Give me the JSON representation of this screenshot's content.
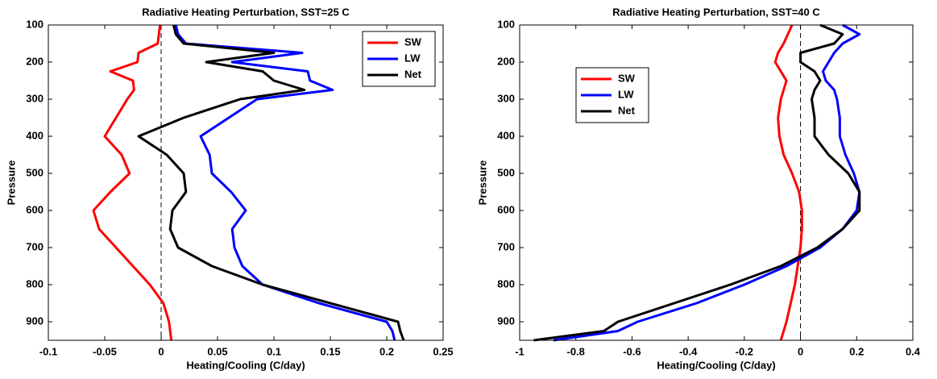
{
  "chart_data": [
    {
      "type": "line",
      "title": "Radiative Heating Perturbation, SST=25 C",
      "x_label": "Heating/Cooling (C/day)",
      "y_label": "Pressure",
      "y": [
        100,
        125,
        150,
        175,
        200,
        225,
        250,
        275,
        300,
        350,
        400,
        450,
        500,
        550,
        600,
        650,
        700,
        750,
        800,
        850,
        900,
        925,
        950
      ],
      "series": [
        {
          "name": "SW",
          "color": "#ff0000",
          "values": [
            -0.001,
            -0.002,
            -0.003,
            -0.02,
            -0.021,
            -0.045,
            -0.025,
            -0.024,
            -0.03,
            -0.04,
            -0.05,
            -0.035,
            -0.028,
            -0.045,
            -0.06,
            -0.055,
            -0.04,
            -0.025,
            -0.01,
            0.002,
            0.007,
            0.008,
            0.009
          ]
        },
        {
          "name": "LW",
          "color": "#0000ff",
          "values": [
            0.013,
            0.015,
            0.022,
            0.125,
            0.063,
            0.13,
            0.132,
            0.152,
            0.085,
            0.06,
            0.035,
            0.043,
            0.045,
            0.062,
            0.075,
            0.063,
            0.065,
            0.072,
            0.09,
            0.14,
            0.2,
            0.205,
            0.207
          ]
        },
        {
          "name": "Net",
          "color": "#000000",
          "values": [
            0.011,
            0.013,
            0.02,
            0.1,
            0.04,
            0.09,
            0.1,
            0.127,
            0.07,
            0.02,
            -0.02,
            0.005,
            0.02,
            0.022,
            0.01,
            0.008,
            0.015,
            0.045,
            0.09,
            0.15,
            0.21,
            0.212,
            0.215
          ]
        }
      ],
      "xlim": [
        -0.1,
        0.25
      ],
      "xticks": [
        -0.1,
        -0.05,
        0,
        0.05,
        0.1,
        0.15,
        0.2,
        0.25
      ],
      "ylim": [
        100,
        950
      ],
      "yticks": [
        100,
        200,
        300,
        400,
        500,
        600,
        700,
        800,
        900
      ],
      "y_reversed": true,
      "zero_line": true,
      "legend": "northeast"
    },
    {
      "type": "line",
      "title": "Radiative Heating Perturbation, SST=40 C",
      "x_label": "Heating/Cooling (C/day)",
      "y_label": "Pressure",
      "y": [
        100,
        125,
        150,
        175,
        200,
        225,
        250,
        275,
        300,
        350,
        400,
        450,
        500,
        550,
        600,
        650,
        700,
        750,
        800,
        850,
        900,
        925,
        950
      ],
      "series": [
        {
          "name": "SW",
          "color": "#ff0000",
          "values": [
            -0.03,
            -0.045,
            -0.06,
            -0.08,
            -0.09,
            -0.07,
            -0.05,
            -0.06,
            -0.07,
            -0.08,
            -0.075,
            -0.06,
            -0.03,
            -0.005,
            0.005,
            0.005,
            0,
            -0.01,
            -0.02,
            -0.035,
            -0.05,
            -0.06,
            -0.07
          ]
        },
        {
          "name": "LW",
          "color": "#0000ff",
          "values": [
            0.15,
            0.21,
            0.15,
            0.12,
            0.1,
            0.08,
            0.09,
            0.12,
            0.13,
            0.14,
            0.14,
            0.16,
            0.19,
            0.21,
            0.2,
            0.15,
            0.07,
            -0.05,
            -0.2,
            -0.37,
            -0.58,
            -0.65,
            -0.88
          ]
        },
        {
          "name": "Net",
          "color": "#000000",
          "values": [
            0.07,
            0.15,
            0.12,
            0,
            0,
            0.05,
            0.07,
            0.05,
            0.04,
            0.05,
            0.05,
            0.1,
            0.17,
            0.21,
            0.21,
            0.15,
            0.06,
            -0.07,
            -0.25,
            -0.45,
            -0.65,
            -0.7,
            -0.95
          ]
        }
      ],
      "xlim": [
        -1,
        0.4
      ],
      "xticks": [
        -1,
        -0.8,
        -0.6,
        -0.4,
        -0.2,
        0,
        0.2,
        0.4
      ],
      "ylim": [
        100,
        950
      ],
      "yticks": [
        100,
        200,
        300,
        400,
        500,
        600,
        700,
        800,
        900
      ],
      "y_reversed": true,
      "zero_line": true,
      "legend": "northwest"
    }
  ]
}
